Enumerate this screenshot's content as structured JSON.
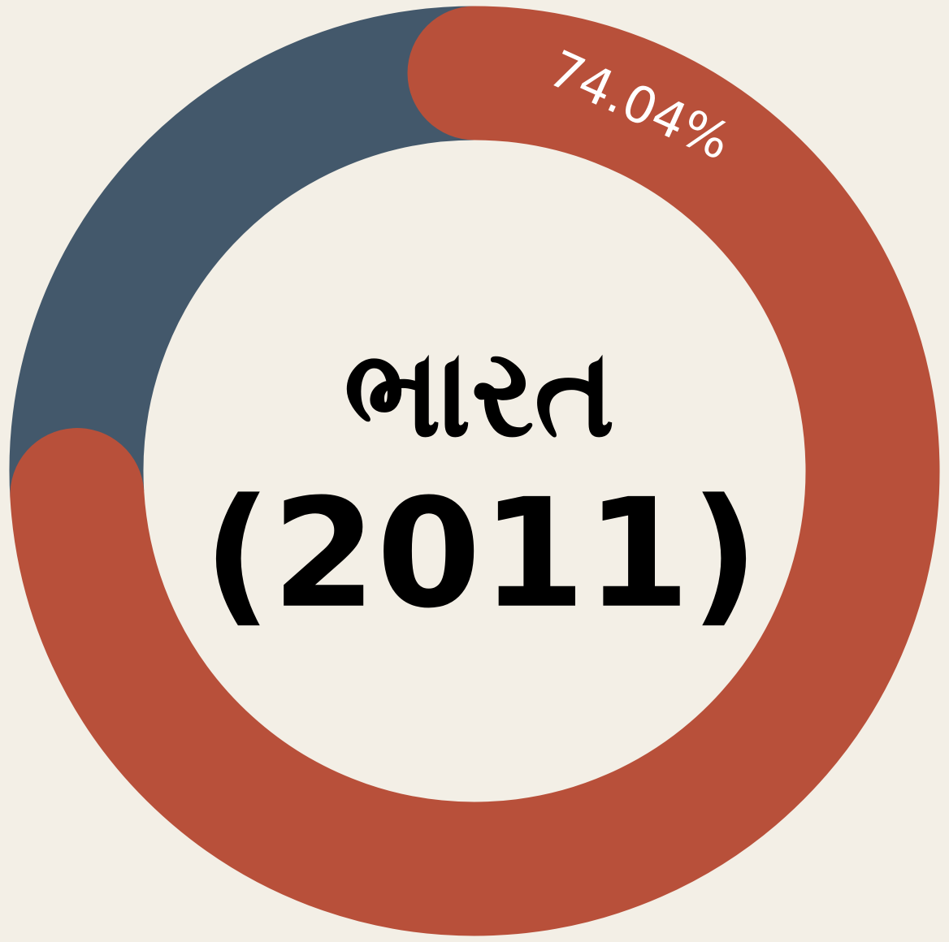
{
  "chart_data": {
    "type": "donut",
    "title": "ભારત",
    "subtitle": "(2011)",
    "values": [
      74.04,
      25.96
    ],
    "value_labels": [
      "74.04%",
      null
    ],
    "colors": [
      "#b8503a",
      "#43586b"
    ]
  }
}
